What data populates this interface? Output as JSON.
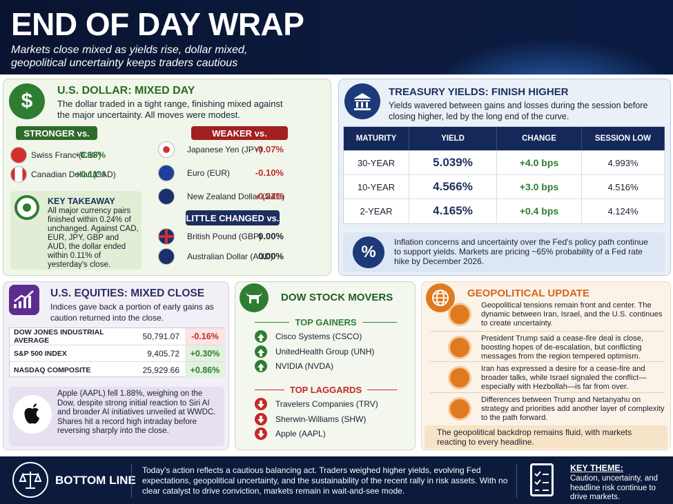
{
  "header": {
    "title": "END OF DAY WRAP",
    "subtitle": "Markets close mixed as yields rise, dollar mixed, geopolitical uncertainty keeps traders cautious"
  },
  "dollar": {
    "title": "U.S. DOLLAR: MIXED DAY",
    "text": "The dollar traded in a tight range, finishing mixed against the major uncertainty. All moves were modest.",
    "stronger": {
      "label": "STRONGER vs.",
      "items": [
        {
          "name": "Swiss Franc (CHF)",
          "change": "+0.18%"
        },
        {
          "name": "Canadian Dollar (CAD)",
          "change": "+0.11%"
        }
      ]
    },
    "weaker": {
      "label": "WEAKER vs.",
      "items": [
        {
          "name": "Japanese Yen (JPY)",
          "change": "-0.07%"
        },
        {
          "name": "Euro (EUR)",
          "change": "-0.10%"
        },
        {
          "name": "New Zealand Dollar (NZD)",
          "change": "-0.24%"
        }
      ]
    },
    "little_changed": {
      "label": "LITTLE CHANGED vs.",
      "items": [
        {
          "name": "British Pound (GBP)",
          "change": "0.00%"
        },
        {
          "name": "Australian Dollar (AUD)",
          "change": "0.00%"
        }
      ]
    },
    "takeaway": {
      "title": "KEY TAKEAWAY",
      "text": "All major currency pairs finished within 0.24% of unchanged. Against CAD, EUR, JPY, GBP and AUD, the dollar ended within 0.11% of yesterday's close."
    }
  },
  "treasury": {
    "title": "TREASURY YIELDS: FINISH HIGHER",
    "text": "Yields wavered between gains and losses during the session before closing higher, led by the long end of the curve.",
    "table": {
      "headers": [
        "MATURITY",
        "YIELD",
        "CHANGE",
        "SESSION LOW"
      ],
      "rows": [
        [
          "30-YEAR",
          "5.039%",
          "+4.0 bps",
          "4.993%"
        ],
        [
          "10-YEAR",
          "4.566%",
          "+3.0 bps",
          "4.516%"
        ],
        [
          "2-YEAR",
          "4.165%",
          "+0.4 bps",
          "4.124%"
        ]
      ]
    },
    "note": "Inflation concerns and uncertainty over the Fed's policy path continue to support yields. Markets are pricing ~65% probability of a Fed rate hike by December 2026."
  },
  "equities": {
    "title": "U.S. EQUITIES: MIXED CLOSE",
    "text": "Indices gave back a portion of early gains as caution returned into the close.",
    "table": {
      "rows": [
        [
          "DOW JONES INDUSTRIAL AVERAGE",
          "50,791.07",
          "-0.16%"
        ],
        [
          "S&P 500 INDEX",
          "9,405.72",
          "+0.30%"
        ],
        [
          "NASDAQ COMPOSITE",
          "25,929.66",
          "+0.86%"
        ]
      ]
    },
    "note": "Apple (AAPL) fell 1.88%, weighing on the Dow, despite strong initial reaction to Siri AI and broader AI initiatives unveiled at WWDC. Shares hit a record high intraday before reversing sharply into the close."
  },
  "dow": {
    "title": "DOW STOCK MOVERS",
    "gainers": {
      "label": "TOP GAINERS",
      "items": [
        "Cisco Systems (CSCO)",
        "UnitedHealth Group (UNH)",
        "NVIDIA (NVDA)"
      ]
    },
    "laggards": {
      "label": "TOP LAGGARDS",
      "items": [
        "Travelers Companies (TRV)",
        "Sherwin-Williams (SHW)",
        "Apple (AAPL)"
      ]
    }
  },
  "geopolitics": {
    "title": "GEOPOLITICAL UPDATE",
    "items": [
      "Geopolitical tensions remain front and center. The dynamic between Iran, Israel, and the U.S. continues to create uncertainty.",
      "President Trump said a cease-fire deal is close, boosting hopes of de-escalation, but conflicting messages from the region tempered optimism.",
      "Iran has expressed a desire for a cease-fire and broader talks, while Israel signaled the conflict—especially with Hezbollah—is far from over.",
      "Differences between Trump and Netanyahu on strategy and priorities add another layer of complexity to the path forward."
    ],
    "footer": "The geopolitical backdrop remains fluid, with markets reacting to every headline."
  },
  "bottom_line": {
    "label": "BOTTOM LINE",
    "text": "Today's action reflects a cautious balancing act. Traders weighed higher yields, evolving Fed expectations, geopolitical uncertainty, and the sustainability of the recent rally in risk assets. With no clear catalyst to drive conviction, markets remain in wait-and-see mode.",
    "key_theme": {
      "title": "KEY THEME:",
      "text": "Caution, uncertainty, and headline risk continue to drive markets."
    }
  }
}
